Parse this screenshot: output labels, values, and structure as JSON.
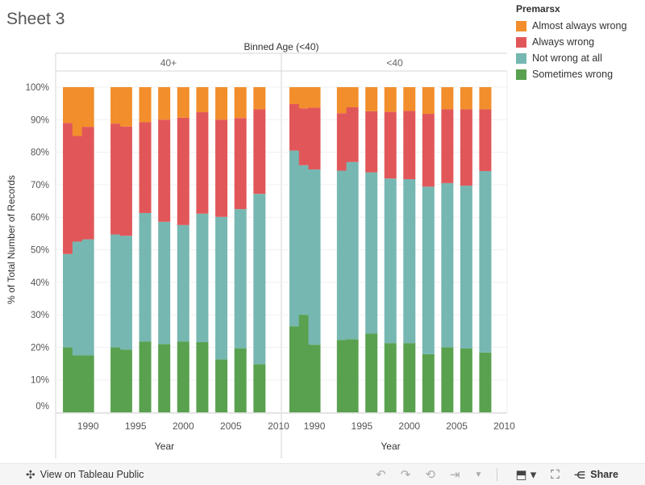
{
  "sheet_title": "Sheet 3",
  "legend": {
    "title": "Premarsx",
    "items": [
      {
        "label": "Almost always wrong",
        "color": "#f28e2b"
      },
      {
        "label": "Always wrong",
        "color": "#e15759"
      },
      {
        "label": "Not wrong at all",
        "color": "#76b7b2"
      },
      {
        "label": "Sometimes wrong",
        "color": "#59a14f"
      }
    ]
  },
  "footer": {
    "view_label": "View on Tableau Public",
    "share_label": "Share",
    "icons": [
      "tableau-logo-icon",
      "undo-icon",
      "redo-icon",
      "revert-icon",
      "refresh-icon",
      "dropdown-icon",
      "download-icon",
      "fullscreen-icon",
      "share-icon"
    ]
  },
  "chart_data": {
    "type": "bar",
    "stacked": true,
    "column_header": "Binned Age (<40)",
    "ylabel": "% of Total Number of Records",
    "xlabel": "Year",
    "ylim": [
      0,
      100
    ],
    "y_ticks": [
      "0%",
      "10%",
      "20%",
      "30%",
      "40%",
      "50%",
      "60%",
      "70%",
      "80%",
      "90%",
      "100%"
    ],
    "x_ticks": [
      "1990",
      "1995",
      "2000",
      "2005",
      "2010"
    ],
    "series_order": [
      "Sometimes wrong",
      "Not wrong at all",
      "Always wrong",
      "Almost always wrong"
    ],
    "panels": [
      {
        "name": "40+",
        "x": [
          1988,
          1989,
          1990,
          1993,
          1994,
          1996,
          1998,
          2000,
          2002,
          2004,
          2006,
          2008
        ],
        "series": [
          {
            "name": "Sometimes wrong",
            "values": [
              20,
              17.5,
              17.5,
              20,
              19.3,
              21.8,
              21,
              21.8,
              21.6,
              16.3,
              19.7,
              14.8
            ]
          },
          {
            "name": "Not wrong at all",
            "values": [
              28.7,
              35,
              35.7,
              34.7,
              35,
              39.5,
              37.6,
              35.8,
              39.5,
              43.8,
              42.8,
              52.4
            ]
          },
          {
            "name": "Always wrong",
            "values": [
              40.3,
              32.5,
              34.6,
              34.1,
              33.6,
              27.9,
              31.4,
              33,
              31.2,
              29.9,
              28,
              26
            ]
          },
          {
            "name": "Almost always wrong",
            "values": [
              11,
              15,
              12.2,
              11.2,
              12.1,
              10.8,
              10,
              9.4,
              7.7,
              10,
              9.5,
              6.8
            ]
          }
        ]
      },
      {
        "name": "<40",
        "x": [
          1988,
          1989,
          1990,
          1993,
          1994,
          1996,
          1998,
          2000,
          2002,
          2004,
          2006,
          2008
        ],
        "series": [
          {
            "name": "Sometimes wrong",
            "values": [
              26.5,
              30,
              20.8,
              22.3,
              22.5,
              24.2,
              21.3,
              21.3,
              17.9,
              20,
              19.7,
              18.4
            ]
          },
          {
            "name": "Not wrong at all",
            "values": [
              54,
              46,
              53.9,
              52,
              54.5,
              49.6,
              50.6,
              50.4,
              51.5,
              50.5,
              50,
              55.8
            ]
          },
          {
            "name": "Always wrong",
            "values": [
              14.3,
              17.5,
              19,
              17.7,
              16.8,
              18.8,
              20.5,
              21,
              22.4,
              22.7,
              23.5,
              19
            ]
          },
          {
            "name": "Almost always wrong",
            "values": [
              5.2,
              6.5,
              6.3,
              8,
              6.2,
              7.4,
              7.6,
              7.3,
              8.2,
              6.8,
              6.8,
              6.8
            ]
          }
        ]
      }
    ]
  }
}
